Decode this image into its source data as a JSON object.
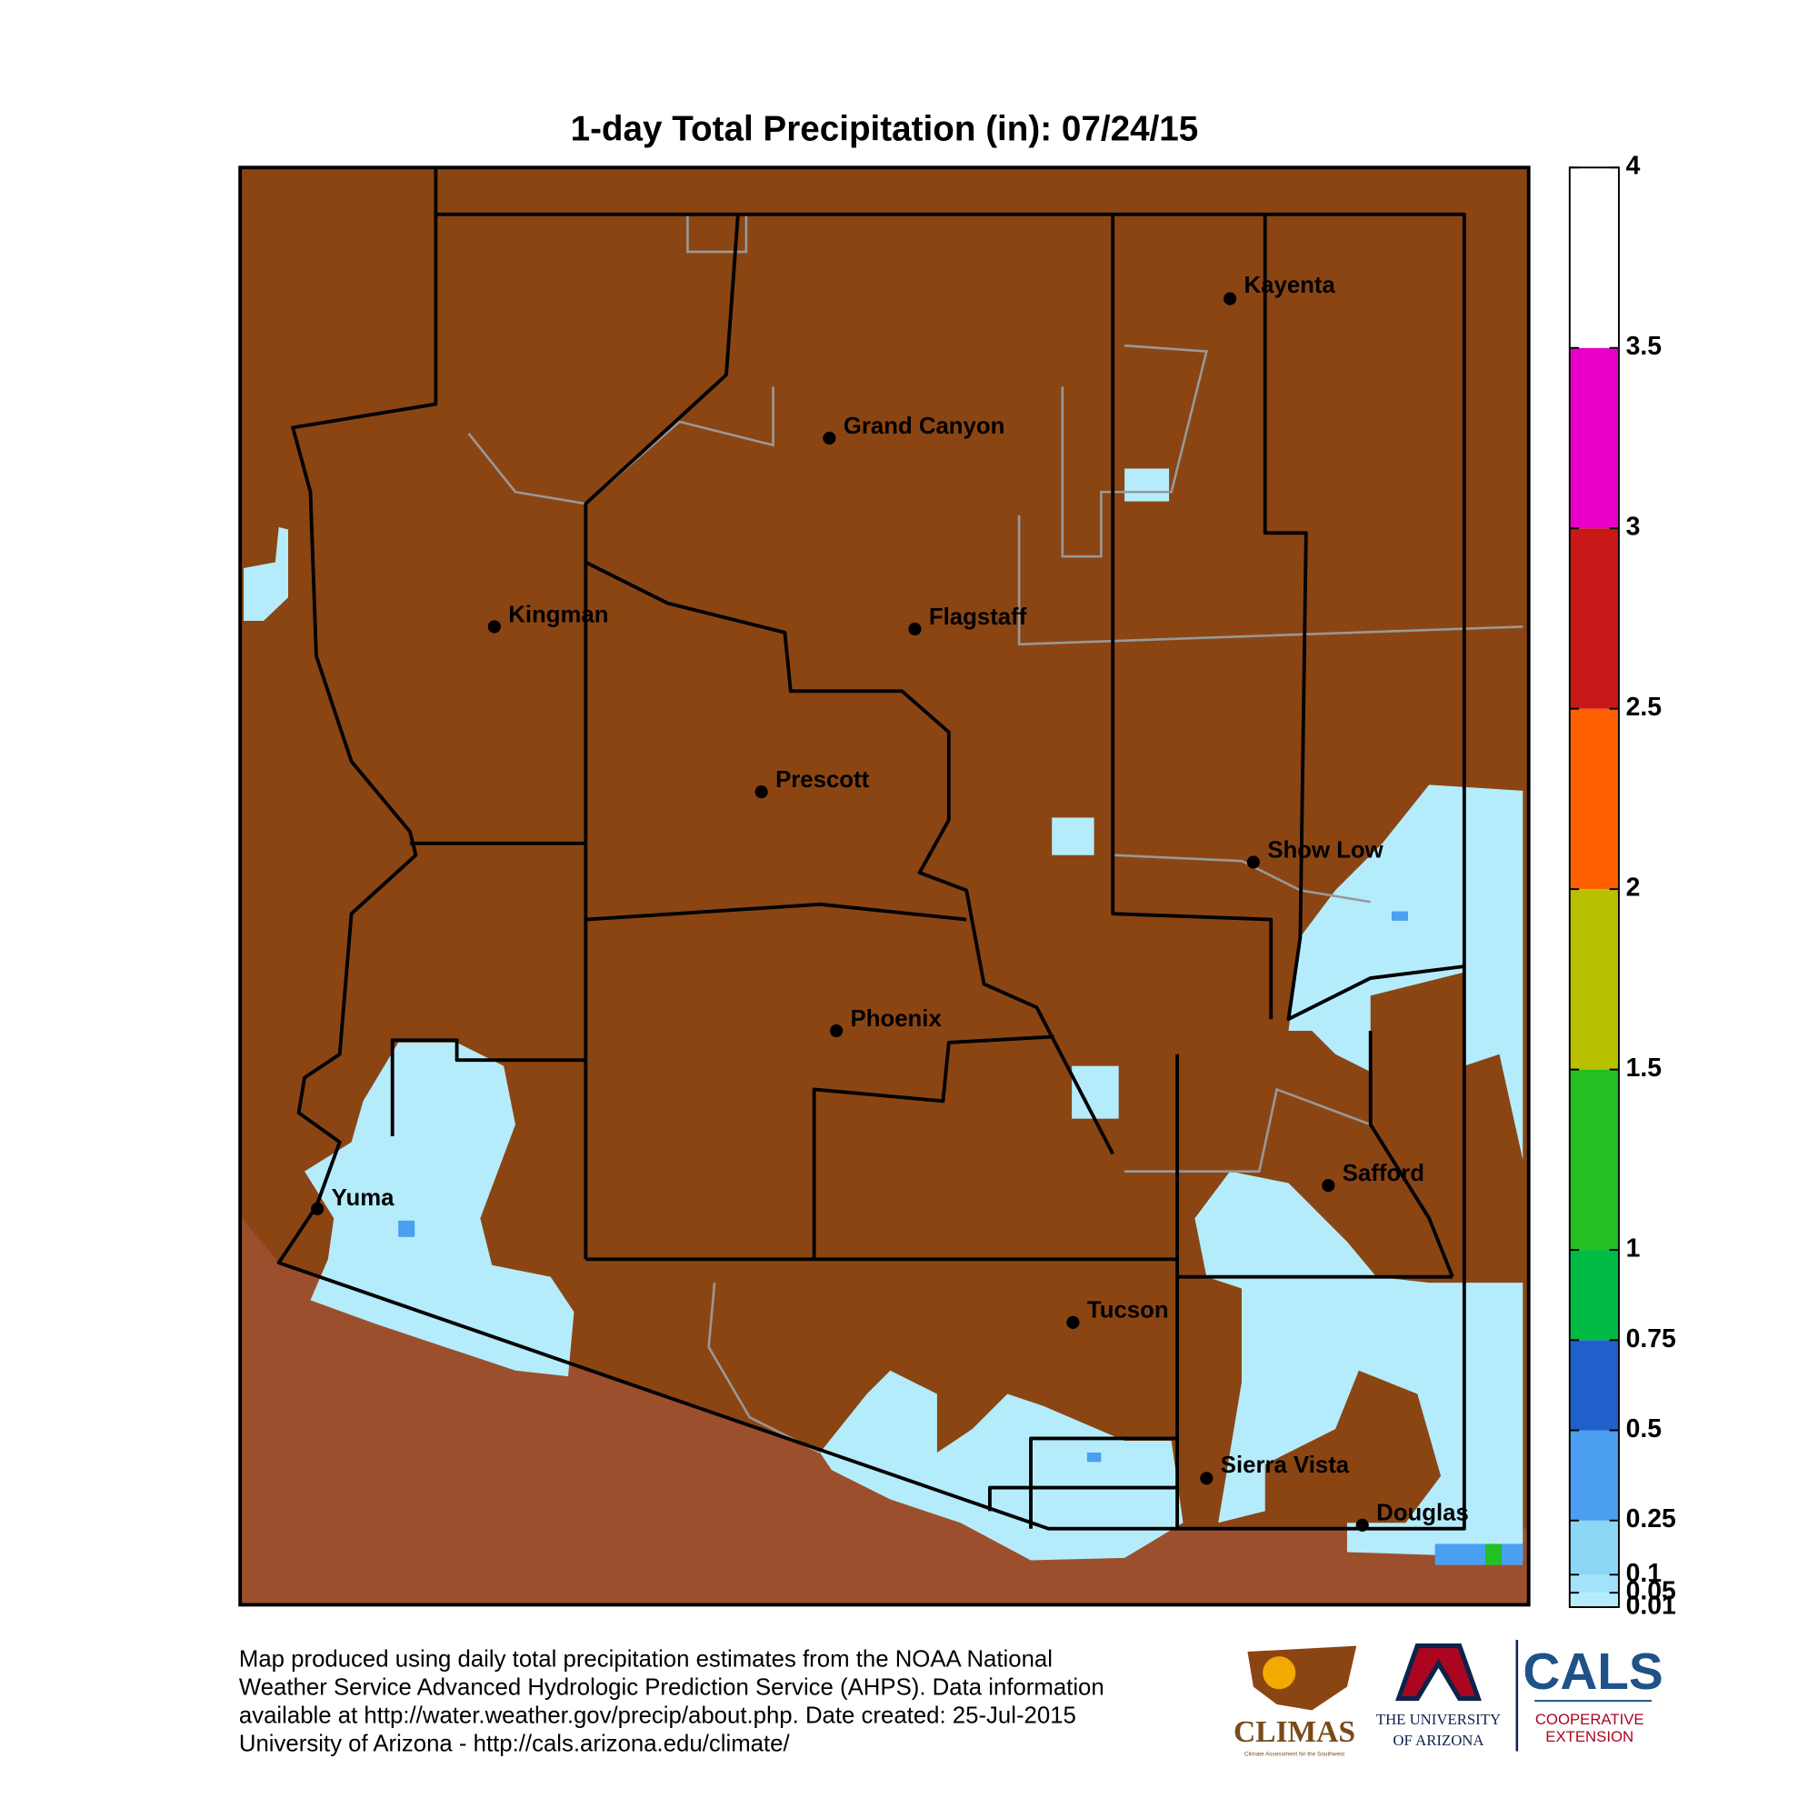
{
  "title": "1-day Total Precipitation (in): 07/24/15",
  "cities": [
    "Kayenta",
    "Grand Canyon",
    "Kingman",
    "Flagstaff",
    "Prescott",
    "Show Low",
    "Phoenix",
    "Safford",
    "Yuma",
    "Tucson",
    "Sierra Vista",
    "Douglas"
  ],
  "colorbar": {
    "ylim": [
      0.01,
      4
    ],
    "yticks": [
      0.01,
      0.05,
      0.1,
      0.25,
      0.5,
      0.75,
      1,
      1.5,
      2,
      2.5,
      3,
      3.5,
      4
    ],
    "colors": [
      "#b4ecfc",
      "#a2e2fa",
      "#8cd6f6",
      "#4a9ff0",
      "#1f60cc",
      "#00bb44",
      "#22c022",
      "#b8c000",
      "#ff6000",
      "#c81818",
      "#e800c8",
      "#ffffff"
    ]
  },
  "footer": [
    "Map produced using daily total precipitation estimates from the NOAA National",
    "Weather Service Advanced Hydrologic Prediction Service (AHPS). Data information",
    "available at http://water.weather.gov/precip/about.php. Date created: 25-Jul-2015",
    "University of Arizona - http://cals.arizona.edu/climate/"
  ],
  "logos": {
    "climas": "CLIMAS",
    "climas_tagline": "Climate Assessment for the Southwest",
    "university": [
      "THE UNIVERSITY",
      "OF ARIZONA"
    ],
    "cals": "CALS",
    "cals_sub": [
      "COOPERATIVE",
      "EXTENSION"
    ]
  }
}
